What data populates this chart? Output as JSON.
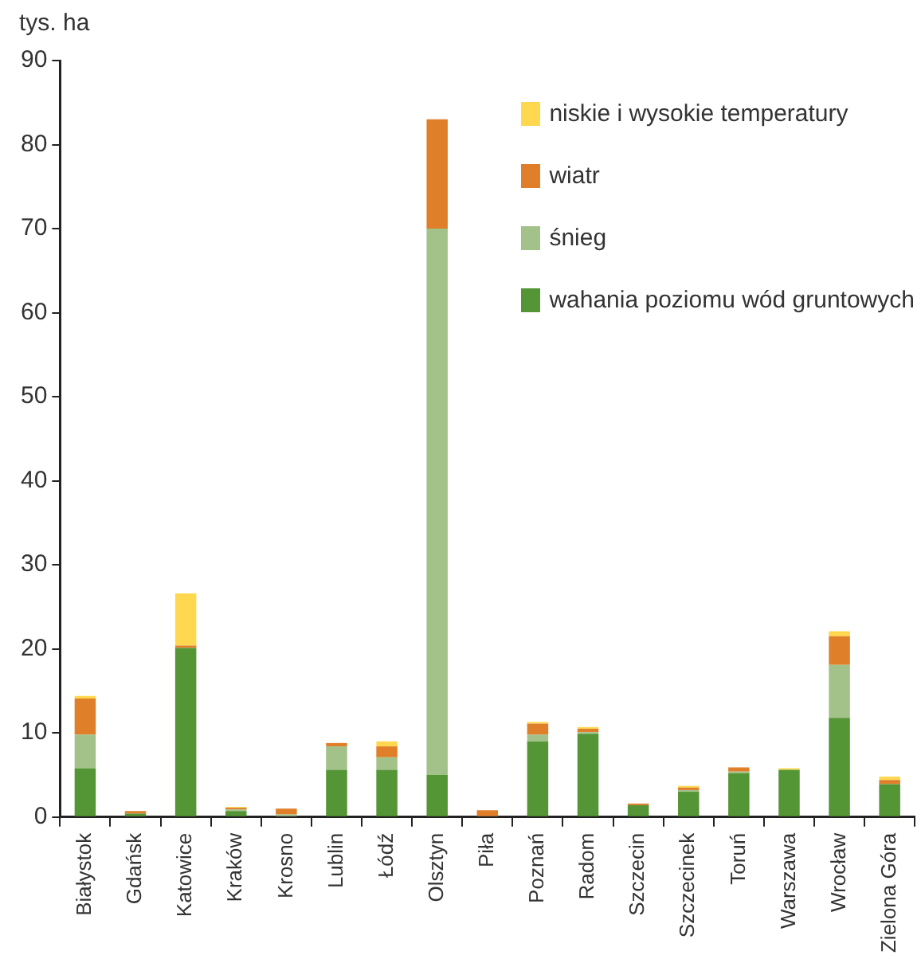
{
  "chart_data": {
    "type": "bar",
    "ylabel": "tys. ha",
    "stacked": true,
    "legend": "top right",
    "categories": [
      "Białystok",
      "Gdańsk",
      "Katowice",
      "Kraków",
      "Krosno",
      "Lublin",
      "Łódź",
      "Olsztyn",
      "Piła",
      "Poznań",
      "Radom",
      "Szczecin",
      "Szczecinek",
      "Toruń",
      "Warszawa",
      "Wrocław",
      "Zielona Góra"
    ],
    "series": [
      {
        "name": "wahania poziomu wód gruntowych",
        "color": "#549535",
        "values": [
          5.8,
          0.4,
          20.1,
          0.7,
          0.1,
          5.6,
          5.6,
          5.0,
          0,
          9.0,
          9.9,
          1.4,
          3.0,
          5.2,
          5.6,
          11.8,
          3.9
        ]
      },
      {
        "name": "śnieg",
        "color": "#a3c28a",
        "values": [
          4.0,
          0,
          0,
          0.2,
          0.2,
          2.8,
          1.5,
          65.0,
          0,
          0.8,
          0.2,
          0,
          0.2,
          0.2,
          0,
          6.3,
          0
        ]
      },
      {
        "name": "wiatr",
        "color": "#e07f2a",
        "values": [
          4.3,
          0.3,
          0.3,
          0.2,
          0.7,
          0.4,
          1.3,
          13.0,
          0.8,
          1.3,
          0.4,
          0.2,
          0.3,
          0.5,
          0,
          3.4,
          0.5
        ]
      },
      {
        "name": "niskie i wysokie temperatury",
        "color": "#ffd84f",
        "values": [
          0.3,
          0,
          6.2,
          0.1,
          0,
          0,
          0.6,
          0,
          0,
          0.2,
          0.2,
          0,
          0.2,
          0,
          0.2,
          0.6,
          0.4
        ]
      }
    ],
    "ylim": [
      0,
      90
    ],
    "yticks": [
      0,
      10,
      20,
      30,
      40,
      50,
      60,
      70,
      80,
      90
    ]
  }
}
